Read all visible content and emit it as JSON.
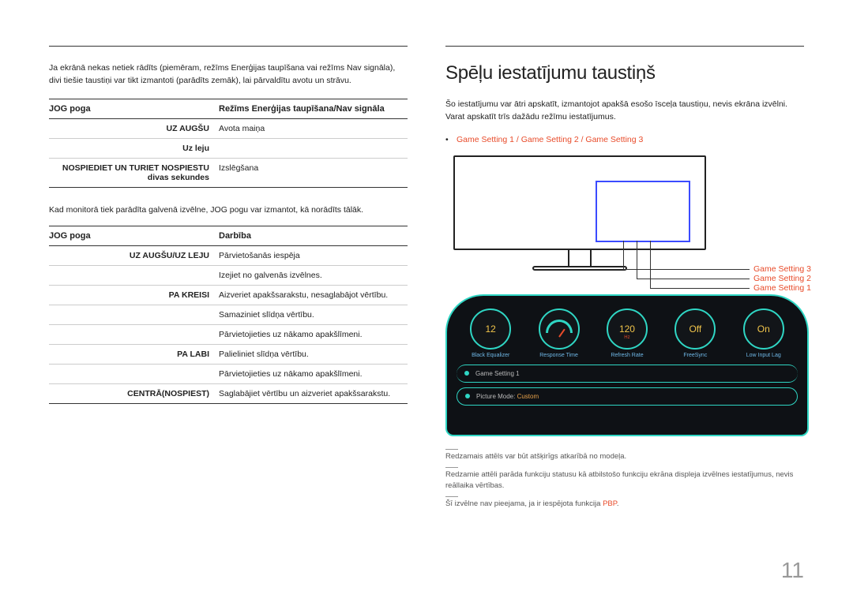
{
  "left": {
    "intro": "Ja ekrānā nekas netiek rādīts (piemēram, režīms Enerģijas taupīšana vai režīms Nav signāla), divi tiešie taustiņi var tikt izmantoti (parādīts zemāk), lai pārvaldītu avotu un strāvu.",
    "table1": {
      "header": {
        "c1": "JOG poga",
        "c2": "Režīms Enerģijas taupīšana/Nav signāla"
      },
      "rows": [
        {
          "c1": "UZ AUGŠU",
          "c2": "Avota maiņa"
        },
        {
          "c1": "Uz leju",
          "c2": ""
        },
        {
          "c1": "NOSPIEDIET UN TURIET NOSPIESTU divas sekundes",
          "c2": "Izslēgšana"
        }
      ]
    },
    "midtext": "Kad monitorā tiek parādīta galvenā izvēlne, JOG pogu var izmantot, kā norādīts tālāk.",
    "table2": {
      "header": {
        "c1": "JOG poga",
        "c2": "Darbība"
      },
      "rows": [
        {
          "c1": "UZ AUGŠU/UZ LEJU",
          "c2": "Pārvietošanās iespēja"
        },
        {
          "c1": "",
          "c2": "Izejiet no galvenās izvēlnes."
        },
        {
          "c1": "PA KREISI",
          "c2": "Aizveriet apakšsarakstu, nesaglabājot vērtību."
        },
        {
          "c1": "",
          "c2": "Samaziniet slīdņa vērtību."
        },
        {
          "c1": "",
          "c2": "Pārvietojieties uz nākamo apakšlīmeni."
        },
        {
          "c1": "PA LABI",
          "c2": "Palieliniet slīdņa vērtību."
        },
        {
          "c1": "",
          "c2": "Pārvietojieties uz nākamo apakšlīmeni."
        },
        {
          "c1": "CENTRĀ(NOSPIEST)",
          "c2": "Saglabājiet vērtību un aizveriet apakšsarakstu."
        }
      ]
    }
  },
  "right": {
    "title": "Spēļu iestatījumu taustiņš",
    "intro": "Šo iestatījumu var ātri apskatīt, izmantojot apakšā esošo īsceļa taustiņu, nevis ekrāna izvēlni. Varat apskatīt trīs dažādu režīmu iestatījumus.",
    "bullet_settings": "Game Setting 1 / Game Setting 2 / Game Setting 3",
    "diag": {
      "gs3": "Game Setting 3",
      "gs2": "Game Setting 2",
      "gs1": "Game Setting 1"
    },
    "osd": {
      "dials": [
        {
          "val": "12",
          "lbl": "Black Equalizer"
        },
        {
          "val": "",
          "lbl": "Response Time",
          "gauge": true
        },
        {
          "val": "120",
          "sub": "Hz",
          "lbl": "Refresh Rate"
        },
        {
          "val": "Off",
          "lbl": "FreeSync"
        },
        {
          "val": "On",
          "lbl": "Low Input Lag"
        }
      ],
      "band1_label": "Game Setting 1",
      "band2_prefix": "Picture Mode: ",
      "band2_value": "Custom"
    },
    "notes": [
      "Redzamais attēls var būt atšķirīgs atkarībā no modeļa.",
      "Redzamie attēli parāda funkciju statusu kā atbilstošo funkciju ekrāna displeja izvēlnes iestatījumus, nevis reāllaika vērtības.",
      "Šī izvēlne nav pieejama, ja ir iespējota funkcija "
    ],
    "pbp": "PBP"
  },
  "pagenum": "11"
}
